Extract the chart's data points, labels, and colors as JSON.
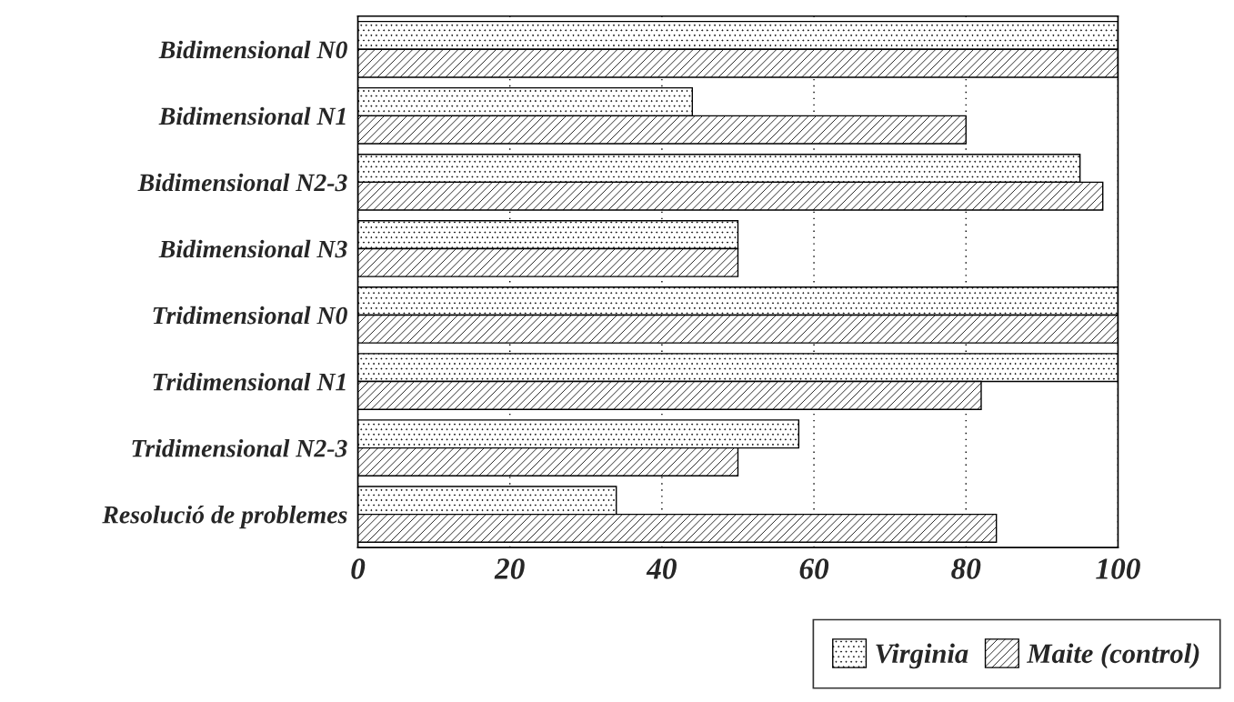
{
  "chart_data": {
    "type": "bar",
    "orientation": "horizontal",
    "categories": [
      "Bidimensional N0",
      "Bidimensional N1",
      "Bidimensional N2-3",
      "Bidimensional N3",
      "Tridimensional N0",
      "Tridimensional N1",
      "Tridimensional N2-3",
      "Resolució de problemes"
    ],
    "series": [
      {
        "name": "Virginia",
        "color": "#000000",
        "values": [
          100,
          44,
          95,
          50,
          100,
          100,
          58,
          34
        ]
      },
      {
        "name": "Maite (control)",
        "color": "#000000",
        "values": [
          100,
          80,
          98,
          50,
          100,
          82,
          50,
          84
        ]
      }
    ],
    "xlim": [
      0,
      100
    ],
    "xticks": [
      0,
      20,
      40,
      60,
      80,
      100
    ],
    "grid": "x",
    "legend": "bottom right"
  }
}
